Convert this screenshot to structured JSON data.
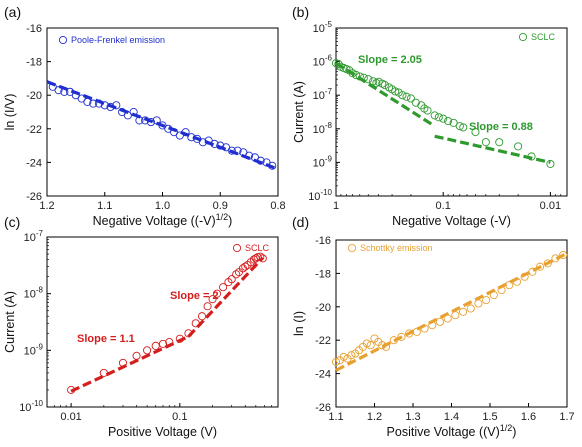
{
  "chart_data": [
    {
      "panel_label": "(a)",
      "type": "scatter",
      "xlabel": "Negative Voltage ((-V)",
      "xlabel_sup": "1/2",
      "xlabel_tail": ")",
      "ylabel": "ln (I/V)",
      "xlim": [
        1.2,
        0.8
      ],
      "ylim": [
        -26,
        -16
      ],
      "xscale": "linear",
      "yscale": "linear",
      "xticks": [
        1.2,
        1.1,
        1.0,
        0.9,
        0.8
      ],
      "xtick_labels": [
        "1.2",
        "1.1",
        "1.0",
        "0.9",
        "0.8"
      ],
      "yticks": [
        -16,
        -18,
        -20,
        -22,
        -24,
        -26
      ],
      "ytick_labels": [
        "-16",
        "-18",
        "-20",
        "-22",
        "-24",
        "-26"
      ],
      "legend": {
        "label": "Poole-Frenkel emission",
        "position": "top-left"
      },
      "color": "#1f2fd0",
      "series": [
        {
          "name": "Poole-Frenkel emission",
          "x": [
            1.19,
            1.18,
            1.17,
            1.16,
            1.15,
            1.14,
            1.13,
            1.12,
            1.11,
            1.1,
            1.09,
            1.08,
            1.07,
            1.06,
            1.05,
            1.04,
            1.03,
            1.02,
            1.01,
            1.0,
            0.99,
            0.98,
            0.97,
            0.96,
            0.95,
            0.94,
            0.93,
            0.92,
            0.91,
            0.9,
            0.89,
            0.88,
            0.87,
            0.86,
            0.85,
            0.84,
            0.83,
            0.82,
            0.81
          ],
          "y": [
            -19.5,
            -19.7,
            -19.8,
            -19.8,
            -20.0,
            -20.2,
            -20.4,
            -20.5,
            -20.5,
            -20.6,
            -20.7,
            -20.6,
            -21.0,
            -21.2,
            -21.0,
            -21.5,
            -21.5,
            -21.6,
            -21.5,
            -21.8,
            -22.0,
            -22.2,
            -22.4,
            -22.2,
            -22.5,
            -22.6,
            -22.8,
            -22.7,
            -22.9,
            -23.0,
            -23.1,
            -23.3,
            -23.3,
            -23.4,
            -23.6,
            -23.7,
            -23.9,
            -24.0,
            -24.2
          ]
        }
      ],
      "fit_lines": [
        {
          "x": [
            1.2,
            0.8
          ],
          "y": [
            -19.2,
            -24.4
          ]
        }
      ]
    },
    {
      "panel_label": "(b)",
      "type": "scatter",
      "xlabel": "Negative Voltage (-V)",
      "ylabel": "Current (A)",
      "xlim": [
        1,
        0.007
      ],
      "ylim": [
        1e-10,
        1e-05
      ],
      "xscale": "log",
      "yscale": "log",
      "xticks": [
        1,
        0.1,
        0.01
      ],
      "xtick_labels": [
        "1",
        "0.1",
        "0.01"
      ],
      "yticks": [
        1e-05,
        1e-06,
        1e-07,
        1e-08,
        1e-09,
        1e-10
      ],
      "ytick_labels": [
        [
          "10",
          "-5"
        ],
        [
          "10",
          "-6"
        ],
        [
          "10",
          "-7"
        ],
        [
          "10",
          "-8"
        ],
        [
          "10",
          "-9"
        ],
        [
          "10",
          "-10"
        ]
      ],
      "legend": {
        "label": "SCLC",
        "position": "top-right"
      },
      "color": "#2e9a2e",
      "series": [
        {
          "name": "SCLC",
          "x": [
            1.0,
            0.95,
            0.9,
            0.85,
            0.8,
            0.75,
            0.7,
            0.65,
            0.6,
            0.55,
            0.5,
            0.45,
            0.42,
            0.4,
            0.37,
            0.35,
            0.32,
            0.3,
            0.28,
            0.26,
            0.24,
            0.22,
            0.2,
            0.18,
            0.16,
            0.15,
            0.14,
            0.12,
            0.11,
            0.1,
            0.09,
            0.08,
            0.07,
            0.065,
            0.05,
            0.04,
            0.03,
            0.02,
            0.015,
            0.01
          ],
          "y": [
            9e-07,
            8.5e-07,
            7e-07,
            6.5e-07,
            6e-07,
            5.5e-07,
            4.5e-07,
            4e-07,
            3.6e-07,
            3.3e-07,
            3e-07,
            2.6e-07,
            2.3e-07,
            2.5e-07,
            2.2e-07,
            2e-07,
            1.7e-07,
            1.5e-07,
            1.3e-07,
            1.2e-07,
            1e-07,
            9e-08,
            8e-08,
            6e-08,
            5e-08,
            4e-08,
            3.5e-08,
            2.5e-08,
            2.2e-08,
            2e-08,
            1.7e-08,
            1.5e-08,
            1.2e-08,
            1.1e-08,
            8e-09,
            4e-09,
            4e-09,
            3e-09,
            1.5e-09,
            9e-10
          ]
        }
      ],
      "fit_lines": [
        {
          "x": [
            1,
            0.12
          ],
          "y": [
            9e-07,
            1.2e-08
          ]
        },
        {
          "x": [
            0.12,
            0.01
          ],
          "y": [
            6e-09,
            1e-09
          ]
        }
      ],
      "annotations": [
        {
          "text": "Slope = 2.05",
          "x": 0.75,
          "y": 9e-07
        },
        {
          "text": "Slope = 0.88",
          "x": 0.05,
          "y": 1.7e-08
        }
      ]
    },
    {
      "panel_label": "(c)",
      "type": "scatter",
      "xlabel": "Positive Voltage (V)",
      "ylabel": "Current (A)",
      "xlim": [
        0.006,
        0.8
      ],
      "ylim": [
        1e-10,
        1e-07
      ],
      "xscale": "log",
      "yscale": "log",
      "xticks": [
        0.01,
        0.1
      ],
      "xtick_labels": [
        "0.01",
        "0.1"
      ],
      "yticks": [
        1e-07,
        1e-08,
        1e-09,
        1e-10
      ],
      "ytick_labels": [
        [
          "10",
          "-7"
        ],
        [
          "10",
          "-8"
        ],
        [
          "10",
          "-9"
        ],
        [
          "10",
          "-10"
        ]
      ],
      "legend": {
        "label": "SCLC",
        "position": "top-right"
      },
      "color": "#d41e1e",
      "series": [
        {
          "name": "SCLC",
          "x": [
            0.01,
            0.02,
            0.03,
            0.04,
            0.05,
            0.06,
            0.07,
            0.08,
            0.1,
            0.12,
            0.14,
            0.16,
            0.18,
            0.2,
            0.22,
            0.25,
            0.28,
            0.3,
            0.33,
            0.35,
            0.38,
            0.4,
            0.42,
            0.45,
            0.48,
            0.5,
            0.52,
            0.55,
            0.58
          ],
          "y": [
            2e-10,
            4e-10,
            6e-10,
            8e-10,
            1e-09,
            1.2e-09,
            1.3e-09,
            1.4e-09,
            1.6e-09,
            2e-09,
            3e-09,
            4e-09,
            6e-09,
            8e-09,
            1e-08,
            1.3e-08,
            1.6e-08,
            1.8e-08,
            2.2e-08,
            2.4e-08,
            2.8e-08,
            3e-08,
            3.2e-08,
            3.6e-08,
            4e-08,
            4.2e-08,
            4.4e-08,
            4.5e-08,
            4.2e-08
          ]
        }
      ],
      "fit_lines": [
        {
          "x": [
            0.01,
            0.12
          ],
          "y": [
            1.9e-10,
            1.75e-09
          ]
        },
        {
          "x": [
            0.12,
            0.58
          ],
          "y": [
            1.75e-09,
            4.3e-08
          ]
        }
      ],
      "annotations": [
        {
          "text": "Slope = 1.1",
          "x": 0.013,
          "y": 1.8e-09
        },
        {
          "text": "Slope = 2",
          "x": 0.14,
          "y": 2.2e-08
        }
      ]
    },
    {
      "panel_label": "(d)",
      "type": "scatter",
      "xlabel": "Positive Voltage ((V)",
      "xlabel_sup": "1/2",
      "xlabel_tail": ")",
      "ylabel": "ln (I)",
      "xlim": [
        1.1,
        1.7
      ],
      "ylim": [
        -26,
        -16
      ],
      "xscale": "linear",
      "yscale": "linear",
      "xticks": [
        1.1,
        1.2,
        1.3,
        1.4,
        1.5,
        1.6,
        1.7
      ],
      "xtick_labels": [
        "1.1",
        "1.2",
        "1.3",
        "1.4",
        "1.5",
        "1.6",
        "1.7"
      ],
      "yticks": [
        -16,
        -18,
        -20,
        -22,
        -24,
        -26
      ],
      "ytick_labels": [
        "-16",
        "-18",
        "-20",
        "-22",
        "-24",
        "-26"
      ],
      "legend": {
        "label": "Schottky emission",
        "position": "top-left"
      },
      "color": "#e8a030",
      "series": [
        {
          "name": "Schottky emission",
          "x": [
            1.1,
            1.11,
            1.12,
            1.13,
            1.14,
            1.15,
            1.16,
            1.17,
            1.18,
            1.19,
            1.2,
            1.21,
            1.22,
            1.23,
            1.25,
            1.27,
            1.29,
            1.31,
            1.33,
            1.35,
            1.37,
            1.39,
            1.41,
            1.43,
            1.45,
            1.47,
            1.49,
            1.51,
            1.53,
            1.55,
            1.57,
            1.59,
            1.61,
            1.63,
            1.65,
            1.67,
            1.69
          ],
          "y": [
            -23.3,
            -23.2,
            -23.0,
            -23.1,
            -22.9,
            -22.8,
            -22.6,
            -22.4,
            -22.2,
            -22.3,
            -21.9,
            -22.1,
            -22.3,
            -22.4,
            -22.0,
            -21.8,
            -21.6,
            -21.5,
            -21.3,
            -21.1,
            -20.9,
            -20.7,
            -20.5,
            -20.3,
            -20.1,
            -19.8,
            -19.6,
            -19.3,
            -19.0,
            -18.7,
            -18.5,
            -18.2,
            -17.9,
            -17.6,
            -17.4,
            -17.1,
            -16.9
          ]
        }
      ],
      "fit_lines": [
        {
          "x": [
            1.1,
            1.7
          ],
          "y": [
            -23.8,
            -16.8
          ]
        }
      ]
    }
  ]
}
